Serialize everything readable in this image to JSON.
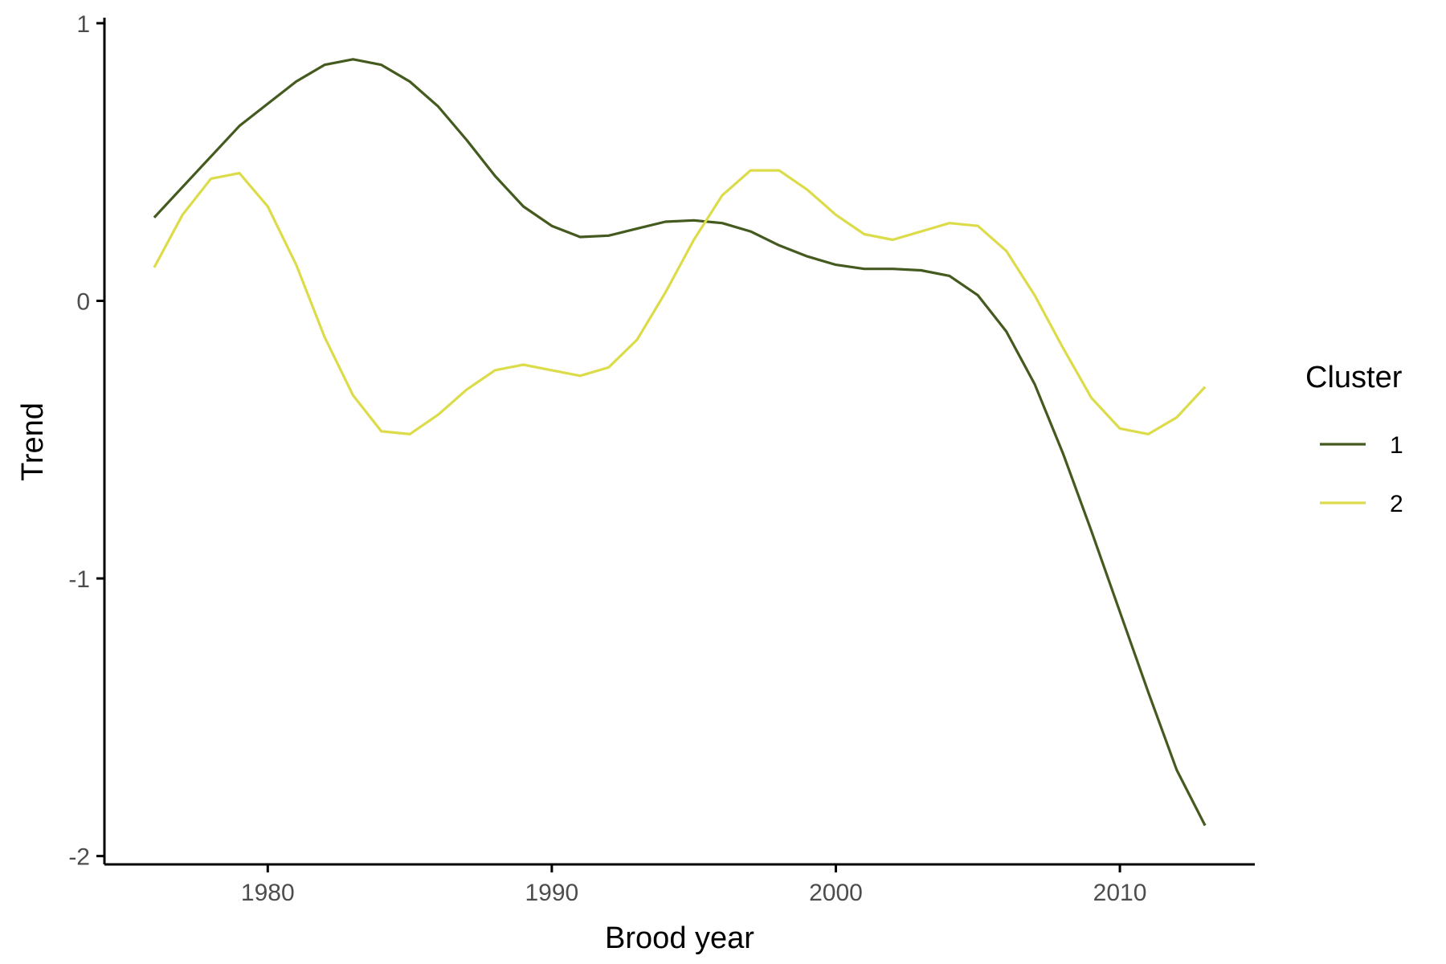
{
  "chart_data": {
    "type": "line",
    "xlabel": "Brood year",
    "ylabel": "Trend",
    "xlim": [
      1974.25,
      2014.75
    ],
    "ylim": [
      -2.03,
      1.02
    ],
    "x_ticks": [
      1980,
      1990,
      2000,
      2010
    ],
    "x_tick_labels": [
      "1980",
      "1990",
      "2000",
      "2010"
    ],
    "y_ticks": [
      -2,
      -1,
      0,
      1
    ],
    "y_tick_labels": [
      "-2",
      "-1",
      "0",
      "1"
    ],
    "grid": false,
    "legend": {
      "title": "Cluster",
      "position": "right"
    },
    "x": [
      1976,
      1977,
      1978,
      1979,
      1980,
      1981,
      1982,
      1983,
      1984,
      1985,
      1986,
      1987,
      1988,
      1989,
      1990,
      1991,
      1992,
      1993,
      1994,
      1995,
      1996,
      1997,
      1998,
      1999,
      2000,
      2001,
      2002,
      2003,
      2004,
      2005,
      2006,
      2007,
      2008,
      2009,
      2010,
      2011,
      2012,
      2013
    ],
    "series": [
      {
        "name": "1",
        "color": "#445a1f",
        "values": [
          0.3,
          0.41,
          0.52,
          0.63,
          0.71,
          0.79,
          0.85,
          0.87,
          0.85,
          0.79,
          0.7,
          0.58,
          0.45,
          0.34,
          0.27,
          0.23,
          0.235,
          0.26,
          0.285,
          0.29,
          0.28,
          0.25,
          0.2,
          0.16,
          0.13,
          0.115,
          0.115,
          0.11,
          0.09,
          0.02,
          -0.11,
          -0.3,
          -0.55,
          -0.83,
          -1.12,
          -1.41,
          -1.69,
          -1.89
        ]
      },
      {
        "name": "2",
        "color": "#dcdc4a",
        "values": [
          0.12,
          0.31,
          0.44,
          0.46,
          0.34,
          0.13,
          -0.13,
          -0.34,
          -0.47,
          -0.48,
          -0.41,
          -0.32,
          -0.25,
          -0.23,
          -0.25,
          -0.27,
          -0.24,
          -0.14,
          0.03,
          0.22,
          0.38,
          0.47,
          0.47,
          0.4,
          0.31,
          0.24,
          0.22,
          0.25,
          0.28,
          0.27,
          0.18,
          0.02,
          -0.17,
          -0.35,
          -0.46,
          -0.48,
          -0.42,
          -0.31
        ]
      }
    ]
  }
}
